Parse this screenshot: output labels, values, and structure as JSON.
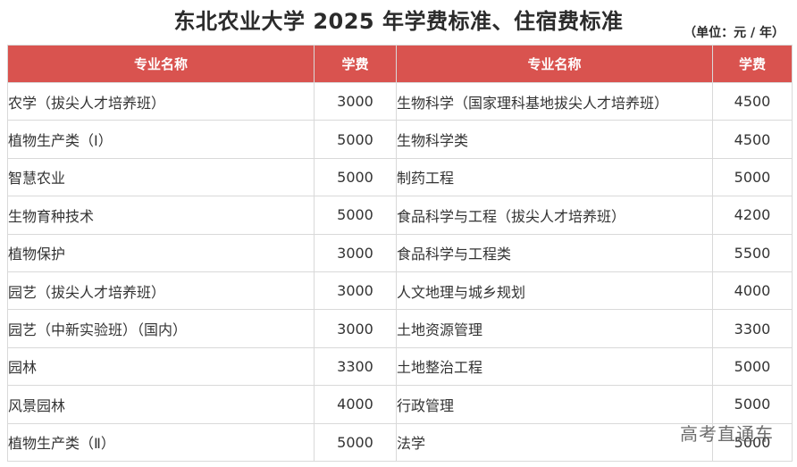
{
  "title": "东北农业大学 2025 年学费标准、住宿费标准",
  "unit": "（单位：元 / 年）",
  "table": {
    "headers": [
      "专业名称",
      "学费",
      "专业名称",
      "学费"
    ],
    "rows": [
      {
        "left_name": "农学（拔尖人才培养班）",
        "left_fee": "3000",
        "right_name": "生物科学（国家理科基地拔尖人才培养班）",
        "right_fee": "4500"
      },
      {
        "left_name": "植物生产类（Ⅰ）",
        "left_fee": "5000",
        "right_name": "生物科学类",
        "right_fee": "4500"
      },
      {
        "left_name": "智慧农业",
        "left_fee": "5000",
        "right_name": "制药工程",
        "right_fee": "5000"
      },
      {
        "left_name": "生物育种技术",
        "left_fee": "5000",
        "right_name": "食品科学与工程（拔尖人才培养班）",
        "right_fee": "4200"
      },
      {
        "left_name": "植物保护",
        "left_fee": "3000",
        "right_name": "食品科学与工程类",
        "right_fee": "5500"
      },
      {
        "left_name": "园艺（拔尖人才培养班）",
        "left_fee": "3000",
        "right_name": "人文地理与城乡规划",
        "right_fee": "4000"
      },
      {
        "left_name": "园艺（中新实验班）（国内）",
        "left_fee": "3000",
        "right_name": "土地资源管理",
        "right_fee": "3300"
      },
      {
        "left_name": "园林",
        "left_fee": "3300",
        "right_name": "土地整治工程",
        "right_fee": "5000"
      },
      {
        "left_name": "风景园林",
        "left_fee": "4000",
        "right_name": "行政管理",
        "right_fee": "5000"
      },
      {
        "left_name": "植物生产类（Ⅱ）",
        "left_fee": "5000",
        "right_name": "法学",
        "right_fee": "5000"
      }
    ]
  },
  "watermark": "高考直通车",
  "colors": {
    "header_bg": "#d9534f",
    "header_text": "#ffffff",
    "border": "#d9d9d9"
  }
}
